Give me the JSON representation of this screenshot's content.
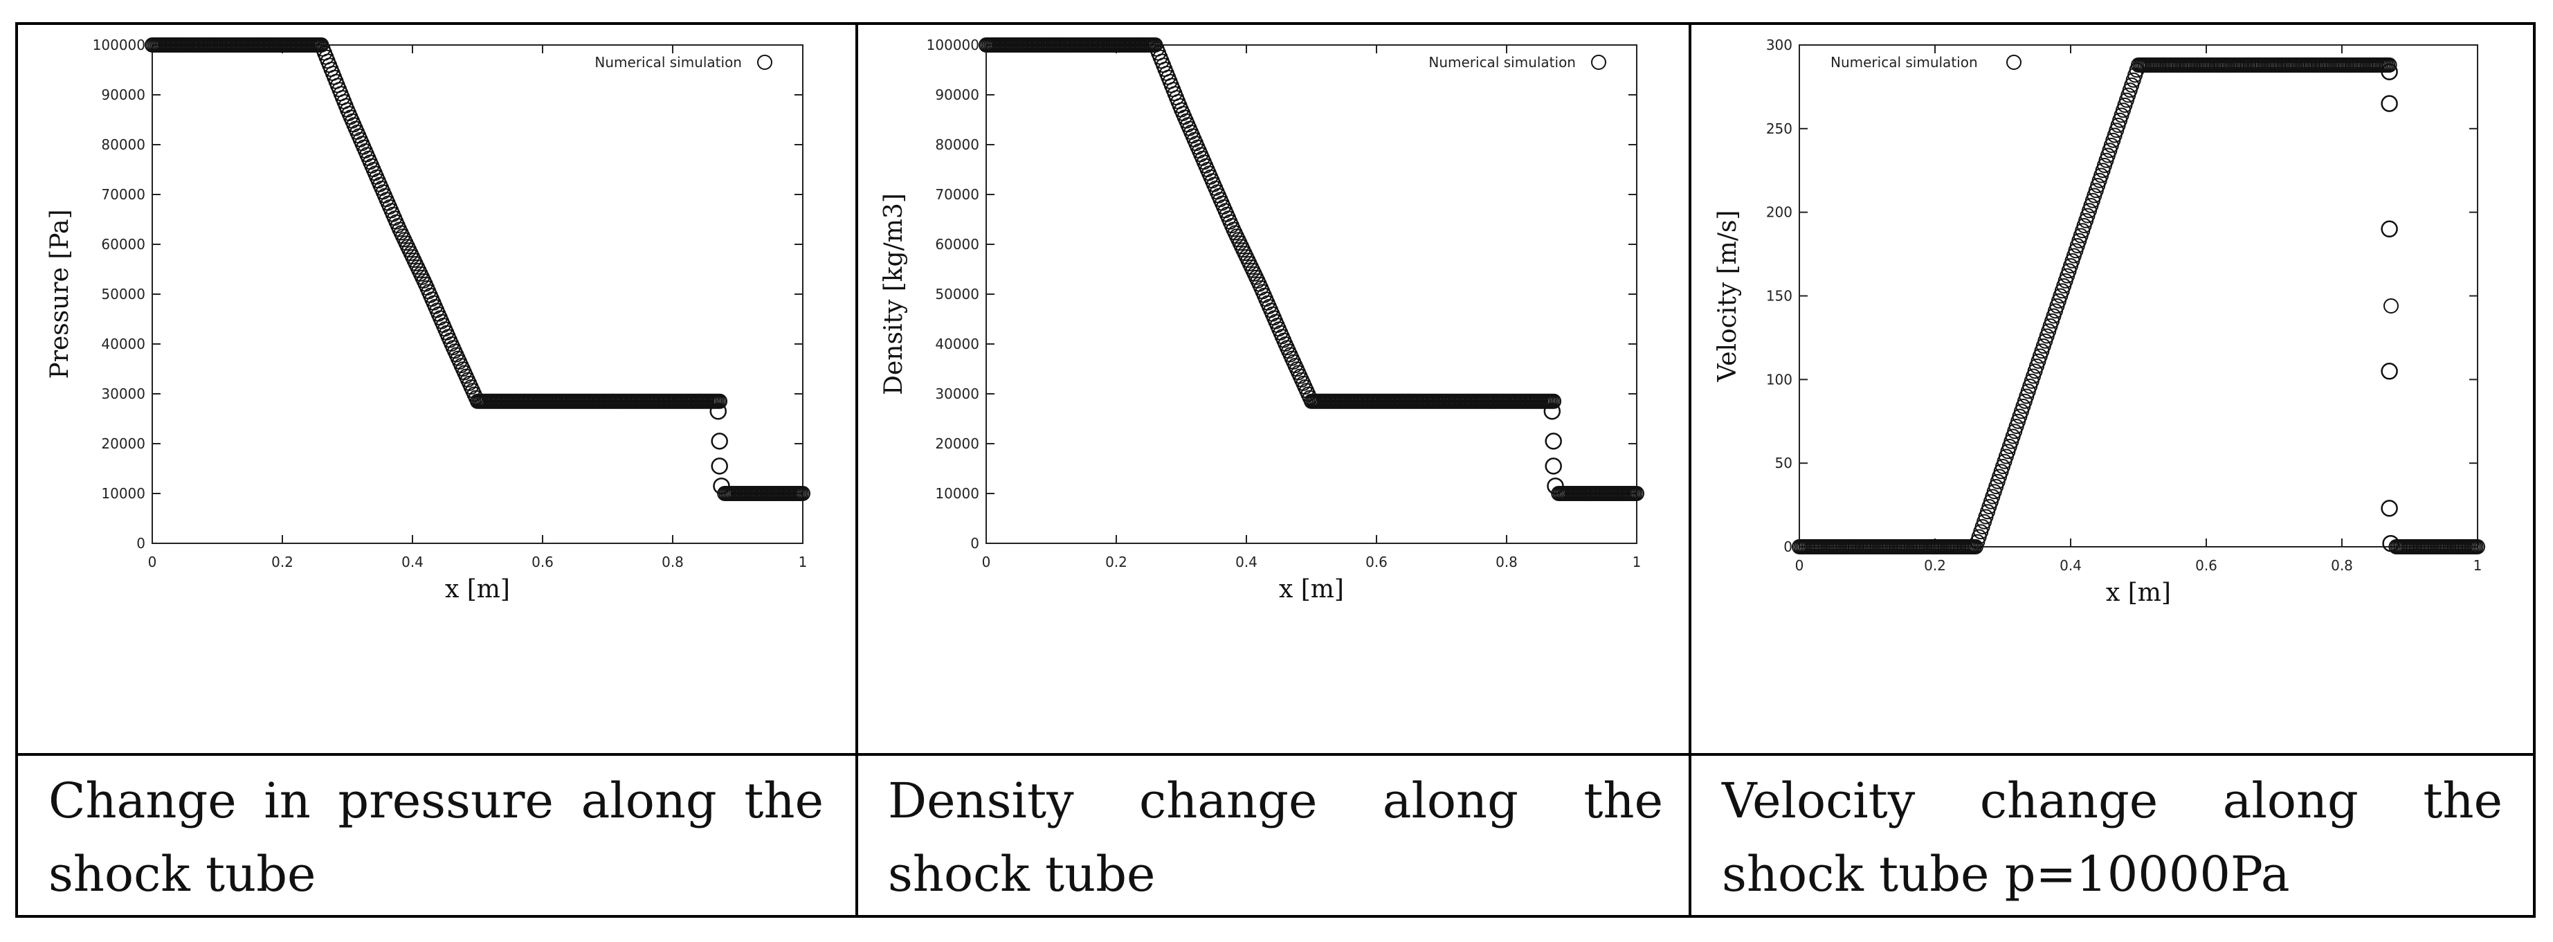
{
  "charts": [
    {
      "type": "scatter",
      "title": "",
      "xlabel": "x [m]",
      "ylabel": "Pressure [Pa]",
      "xlim": [
        0,
        1
      ],
      "ylim": [
        0,
        100000
      ],
      "xticks": [
        0,
        0.2,
        0.4,
        0.6,
        0.8,
        1
      ],
      "xtick_labels": [
        "0",
        "0.2",
        "0.4",
        "0.6",
        "0.8",
        "1"
      ],
      "yticks": [
        0,
        10000,
        20000,
        30000,
        40000,
        50000,
        60000,
        70000,
        80000,
        90000,
        100000
      ],
      "ytick_labels": [
        "0",
        "10000",
        "20000",
        "30000",
        "40000",
        "50000",
        "60000",
        "70000",
        "80000",
        "90000",
        "100000"
      ],
      "legend": {
        "label": "Numerical simulation",
        "position": "top-right"
      },
      "series": [
        {
          "name": "Numerical simulation",
          "marker": "open-circle",
          "profile": [
            [
              0,
              100000
            ],
            [
              0.26,
              100000
            ],
            [
              0.3,
              87000
            ],
            [
              0.34,
              75000
            ],
            [
              0.38,
              63000
            ],
            [
              0.42,
              52000
            ],
            [
              0.46,
              40000
            ],
            [
              0.5,
              28500
            ],
            [
              0.875,
              28500
            ],
            [
              0.875,
              10000
            ],
            [
              1.0,
              10000
            ]
          ],
          "sparse_points": [
            [
              0.87,
              26500
            ],
            [
              0.872,
              20500
            ],
            [
              0.872,
              15500
            ],
            [
              0.875,
              11500
            ]
          ]
        }
      ],
      "caption": "Change in pressure along the shock tube"
    },
    {
      "type": "scatter",
      "title": "",
      "xlabel": "x [m]",
      "ylabel": "Density [kg/m3]",
      "xlim": [
        0,
        1
      ],
      "ylim": [
        0,
        100000
      ],
      "xticks": [
        0,
        0.2,
        0.4,
        0.6,
        0.8,
        1
      ],
      "xtick_labels": [
        "0",
        "0.2",
        "0.4",
        "0.6",
        "0.8",
        "1"
      ],
      "yticks": [
        0,
        10000,
        20000,
        30000,
        40000,
        50000,
        60000,
        70000,
        80000,
        90000,
        100000
      ],
      "ytick_labels": [
        "0",
        "10000",
        "20000",
        "30000",
        "40000",
        "50000",
        "60000",
        "70000",
        "80000",
        "90000",
        "100000"
      ],
      "legend": {
        "label": "Numerical simulation",
        "position": "top-right"
      },
      "series": [
        {
          "name": "Numerical simulation",
          "marker": "open-circle",
          "profile": [
            [
              0,
              100000
            ],
            [
              0.26,
              100000
            ],
            [
              0.3,
              87000
            ],
            [
              0.34,
              75000
            ],
            [
              0.38,
              63000
            ],
            [
              0.42,
              52000
            ],
            [
              0.46,
              40000
            ],
            [
              0.5,
              28500
            ],
            [
              0.875,
              28500
            ],
            [
              0.875,
              10000
            ],
            [
              1.0,
              10000
            ]
          ],
          "sparse_points": [
            [
              0.87,
              26500
            ],
            [
              0.872,
              20500
            ],
            [
              0.872,
              15500
            ],
            [
              0.875,
              11500
            ]
          ]
        }
      ],
      "caption": "Density change along the shock tube"
    },
    {
      "type": "scatter",
      "title": "",
      "xlabel": "x [m]",
      "ylabel": "Velocity [m/s]",
      "xlim": [
        0,
        1
      ],
      "ylim": [
        0,
        300
      ],
      "xticks": [
        0,
        0.2,
        0.4,
        0.6,
        0.8,
        1
      ],
      "xtick_labels": [
        "0",
        "0.2",
        "0.4",
        "0.6",
        "0.8",
        "1"
      ],
      "yticks": [
        0,
        50,
        100,
        150,
        200,
        250,
        300
      ],
      "ytick_labels": [
        "0",
        "50",
        "100",
        "150",
        "200",
        "250",
        "300"
      ],
      "legend": {
        "label": "Numerical simulation",
        "position": "top-left"
      },
      "series": [
        {
          "name": "Numerical simulation",
          "marker": "open-circle",
          "profile": [
            [
              0,
              0
            ],
            [
              0.26,
              0
            ],
            [
              0.5,
              288
            ],
            [
              0.87,
              288
            ],
            [
              0.875,
              0
            ],
            [
              1.0,
              0
            ]
          ],
          "sparse_points": [
            [
              0.87,
              284
            ],
            [
              0.87,
              265
            ],
            [
              0.87,
              190
            ],
            [
              0.87,
              105
            ],
            [
              0.87,
              23
            ],
            [
              0.872,
              2
            ]
          ]
        }
      ],
      "caption": "Velocity change along the shock tube p=10000Pa"
    }
  ]
}
